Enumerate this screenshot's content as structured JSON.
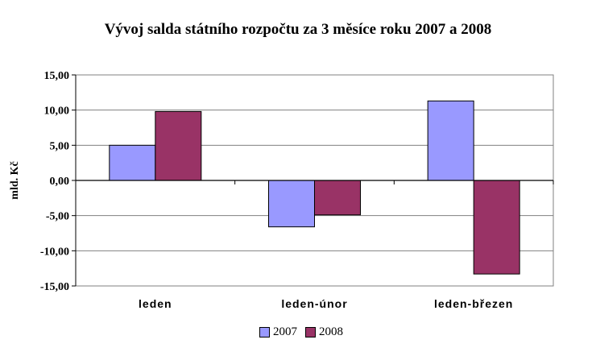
{
  "chart_data": {
    "type": "bar",
    "title": "Vývoj salda státního rozpočtu za 3 měsíce roku 2007 a 2008",
    "ylabel": "mld. Kč",
    "xlabel": "",
    "ylim": [
      -15,
      15
    ],
    "yticks": [
      15,
      10,
      5,
      0,
      -5,
      -10,
      -15
    ],
    "ytick_labels": [
      "15,00",
      "10,00",
      "5,00",
      "0,00",
      "-5,00",
      "-10,00",
      "-15,00"
    ],
    "categories": [
      "leden",
      "leden-únor",
      "leden-březen"
    ],
    "series": [
      {
        "name": "2007",
        "color": "#9999ff",
        "values": [
          5.0,
          -6.6,
          11.3
        ]
      },
      {
        "name": "2008",
        "color": "#993366",
        "values": [
          9.8,
          -4.9,
          -13.3
        ]
      }
    ],
    "grid": true,
    "legend_position": "bottom"
  }
}
